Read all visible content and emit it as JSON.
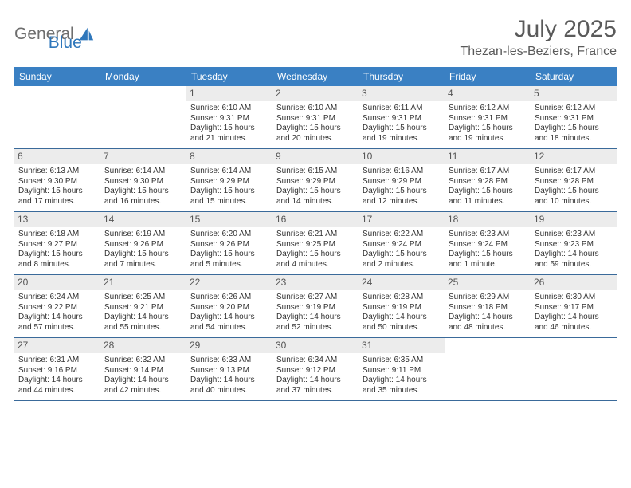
{
  "logo": {
    "word1": "General",
    "word2": "Blue",
    "icon_fill": "#2f77bb"
  },
  "title": "July 2025",
  "location": "Thezan-les-Beziers, France",
  "colors": {
    "header_bg": "#3a80c3",
    "header_text": "#ffffff",
    "daynum_bg": "#ececec",
    "border": "#3a6a9a",
    "body_text": "#333333",
    "title_text": "#5a5a5a"
  },
  "weekdays": [
    "Sunday",
    "Monday",
    "Tuesday",
    "Wednesday",
    "Thursday",
    "Friday",
    "Saturday"
  ],
  "first_weekday_index": 2,
  "days": [
    {
      "n": 1,
      "sr": "6:10 AM",
      "ss": "9:31 PM",
      "dl": "15 hours and 21 minutes."
    },
    {
      "n": 2,
      "sr": "6:10 AM",
      "ss": "9:31 PM",
      "dl": "15 hours and 20 minutes."
    },
    {
      "n": 3,
      "sr": "6:11 AM",
      "ss": "9:31 PM",
      "dl": "15 hours and 19 minutes."
    },
    {
      "n": 4,
      "sr": "6:12 AM",
      "ss": "9:31 PM",
      "dl": "15 hours and 19 minutes."
    },
    {
      "n": 5,
      "sr": "6:12 AM",
      "ss": "9:31 PM",
      "dl": "15 hours and 18 minutes."
    },
    {
      "n": 6,
      "sr": "6:13 AM",
      "ss": "9:30 PM",
      "dl": "15 hours and 17 minutes."
    },
    {
      "n": 7,
      "sr": "6:14 AM",
      "ss": "9:30 PM",
      "dl": "15 hours and 16 minutes."
    },
    {
      "n": 8,
      "sr": "6:14 AM",
      "ss": "9:29 PM",
      "dl": "15 hours and 15 minutes."
    },
    {
      "n": 9,
      "sr": "6:15 AM",
      "ss": "9:29 PM",
      "dl": "15 hours and 14 minutes."
    },
    {
      "n": 10,
      "sr": "6:16 AM",
      "ss": "9:29 PM",
      "dl": "15 hours and 12 minutes."
    },
    {
      "n": 11,
      "sr": "6:17 AM",
      "ss": "9:28 PM",
      "dl": "15 hours and 11 minutes."
    },
    {
      "n": 12,
      "sr": "6:17 AM",
      "ss": "9:28 PM",
      "dl": "15 hours and 10 minutes."
    },
    {
      "n": 13,
      "sr": "6:18 AM",
      "ss": "9:27 PM",
      "dl": "15 hours and 8 minutes."
    },
    {
      "n": 14,
      "sr": "6:19 AM",
      "ss": "9:26 PM",
      "dl": "15 hours and 7 minutes."
    },
    {
      "n": 15,
      "sr": "6:20 AM",
      "ss": "9:26 PM",
      "dl": "15 hours and 5 minutes."
    },
    {
      "n": 16,
      "sr": "6:21 AM",
      "ss": "9:25 PM",
      "dl": "15 hours and 4 minutes."
    },
    {
      "n": 17,
      "sr": "6:22 AM",
      "ss": "9:24 PM",
      "dl": "15 hours and 2 minutes."
    },
    {
      "n": 18,
      "sr": "6:23 AM",
      "ss": "9:24 PM",
      "dl": "15 hours and 1 minute."
    },
    {
      "n": 19,
      "sr": "6:23 AM",
      "ss": "9:23 PM",
      "dl": "14 hours and 59 minutes."
    },
    {
      "n": 20,
      "sr": "6:24 AM",
      "ss": "9:22 PM",
      "dl": "14 hours and 57 minutes."
    },
    {
      "n": 21,
      "sr": "6:25 AM",
      "ss": "9:21 PM",
      "dl": "14 hours and 55 minutes."
    },
    {
      "n": 22,
      "sr": "6:26 AM",
      "ss": "9:20 PM",
      "dl": "14 hours and 54 minutes."
    },
    {
      "n": 23,
      "sr": "6:27 AM",
      "ss": "9:19 PM",
      "dl": "14 hours and 52 minutes."
    },
    {
      "n": 24,
      "sr": "6:28 AM",
      "ss": "9:19 PM",
      "dl": "14 hours and 50 minutes."
    },
    {
      "n": 25,
      "sr": "6:29 AM",
      "ss": "9:18 PM",
      "dl": "14 hours and 48 minutes."
    },
    {
      "n": 26,
      "sr": "6:30 AM",
      "ss": "9:17 PM",
      "dl": "14 hours and 46 minutes."
    },
    {
      "n": 27,
      "sr": "6:31 AM",
      "ss": "9:16 PM",
      "dl": "14 hours and 44 minutes."
    },
    {
      "n": 28,
      "sr": "6:32 AM",
      "ss": "9:14 PM",
      "dl": "14 hours and 42 minutes."
    },
    {
      "n": 29,
      "sr": "6:33 AM",
      "ss": "9:13 PM",
      "dl": "14 hours and 40 minutes."
    },
    {
      "n": 30,
      "sr": "6:34 AM",
      "ss": "9:12 PM",
      "dl": "14 hours and 37 minutes."
    },
    {
      "n": 31,
      "sr": "6:35 AM",
      "ss": "9:11 PM",
      "dl": "14 hours and 35 minutes."
    }
  ],
  "labels": {
    "sunrise": "Sunrise:",
    "sunset": "Sunset:",
    "daylight": "Daylight:"
  }
}
